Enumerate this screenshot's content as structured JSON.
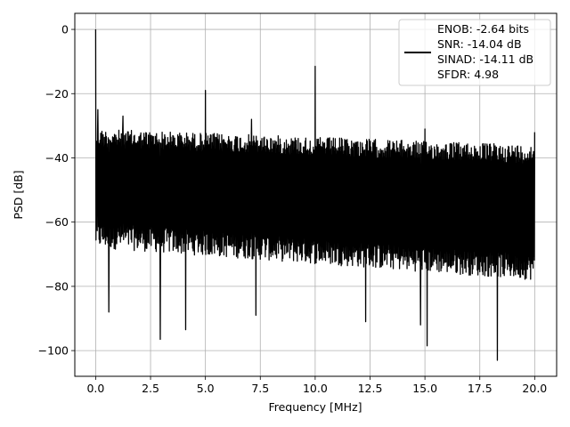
{
  "chart_data": {
    "type": "line",
    "title": "",
    "xlabel": "Frequency [MHz]",
    "ylabel": "PSD [dB]",
    "xlim": [
      -0.95,
      21.0
    ],
    "ylim": [
      -108,
      5
    ],
    "xticks": [
      0.0,
      2.5,
      5.0,
      7.5,
      10.0,
      12.5,
      15.0,
      17.5,
      20.0
    ],
    "xtick_labels": [
      "0.0",
      "2.5",
      "5.0",
      "7.5",
      "10.0",
      "12.5",
      "15.0",
      "17.5",
      "20.0"
    ],
    "yticks": [
      0,
      -20,
      -40,
      -60,
      -80,
      -100
    ],
    "ytick_labels": [
      "0",
      "−20",
      "−40",
      "−60",
      "−80",
      "−100"
    ],
    "grid": true,
    "legend_position": "top-right",
    "color": "#000000",
    "series": [
      {
        "name": "ENOB: -2.64 bits\nSNR: -14.04 dB\nSINAD: -14.11 dB\nSFDR: 4.98",
        "legend_lines": [
          "ENOB: -2.64 bits",
          "SNR: -14.04 dB",
          "SINAD: -14.11 dB",
          "SFDR: 4.98"
        ],
        "noise_band": {
          "x_range": [
            0.0,
            20.0
          ],
          "upper_start": -31,
          "upper_end": -36,
          "lower_start": -68,
          "lower_end": -78
        },
        "spikes": [
          {
            "x": 0.0,
            "y": 0
          },
          {
            "x": 0.1,
            "y": -25
          },
          {
            "x": 1.25,
            "y": -27
          },
          {
            "x": 5.0,
            "y": -19
          },
          {
            "x": 7.1,
            "y": -28
          },
          {
            "x": 10.0,
            "y": -11.5
          },
          {
            "x": 15.0,
            "y": -31
          },
          {
            "x": 20.0,
            "y": -32
          }
        ],
        "dips": [
          {
            "x": 0.6,
            "y": -88
          },
          {
            "x": 2.95,
            "y": -96.5
          },
          {
            "x": 4.1,
            "y": -93.5
          },
          {
            "x": 7.3,
            "y": -89
          },
          {
            "x": 12.3,
            "y": -91
          },
          {
            "x": 14.8,
            "y": -92
          },
          {
            "x": 15.1,
            "y": -98.5
          },
          {
            "x": 18.3,
            "y": -103
          }
        ]
      }
    ]
  }
}
